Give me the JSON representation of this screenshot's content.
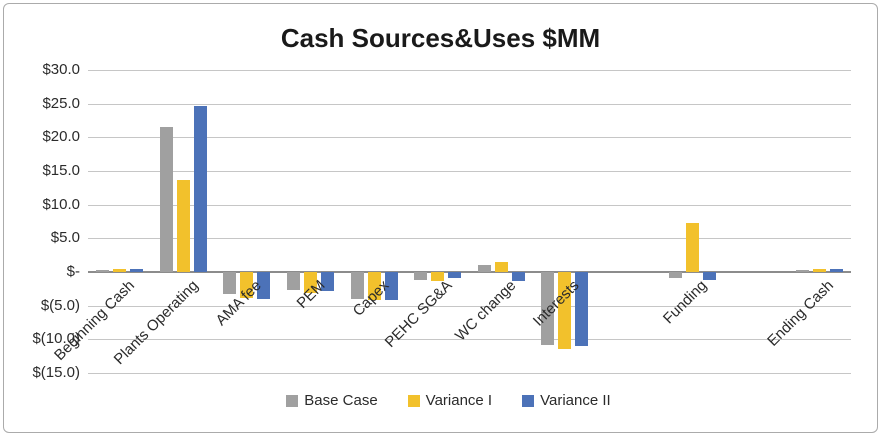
{
  "chart_data": {
    "type": "bar",
    "title": "Cash Sources&Uses $MM",
    "categories": [
      "Beginning Cash",
      "Plants Operating",
      "AMA fee",
      "PEM",
      "Capex",
      "PEHC SG&A",
      "WC change",
      "Interests",
      "",
      "Funding",
      "",
      "Ending Cash"
    ],
    "series": [
      {
        "name": "Base Case",
        "color": "#a0a0a0",
        "values": [
          0.3,
          21.6,
          -3.2,
          -2.7,
          -4.0,
          -1.2,
          1.1,
          -10.8,
          null,
          -0.9,
          null,
          0.3
        ]
      },
      {
        "name": "Variance I",
        "color": "#f2c12c",
        "values": [
          0.4,
          13.7,
          -3.8,
          -3.1,
          -4.2,
          -1.3,
          1.5,
          -11.5,
          null,
          7.3,
          null,
          0.4
        ]
      },
      {
        "name": "Variance II",
        "color": "#4c72b8",
        "values": [
          0.4,
          24.6,
          -4.0,
          -2.8,
          -4.1,
          -0.9,
          -1.3,
          -11.0,
          null,
          -1.2,
          null,
          0.4
        ]
      }
    ],
    "y_axis": {
      "min": -15,
      "max": 30,
      "step": 5,
      "tick_labels": [
        "$30.0",
        "$25.0",
        "$20.0",
        "$15.0",
        "$10.0",
        "$5.0",
        "$-",
        "$(5.0)",
        "$(10.0)",
        "$(15.0)"
      ]
    },
    "legend_position": "bottom",
    "grid": true,
    "colors": {
      "gridline": "#c6c6c6",
      "zero_axis": "#8c8c8c",
      "title_text": "#1a1a1a",
      "label_text": "#2b2b2b"
    }
  }
}
